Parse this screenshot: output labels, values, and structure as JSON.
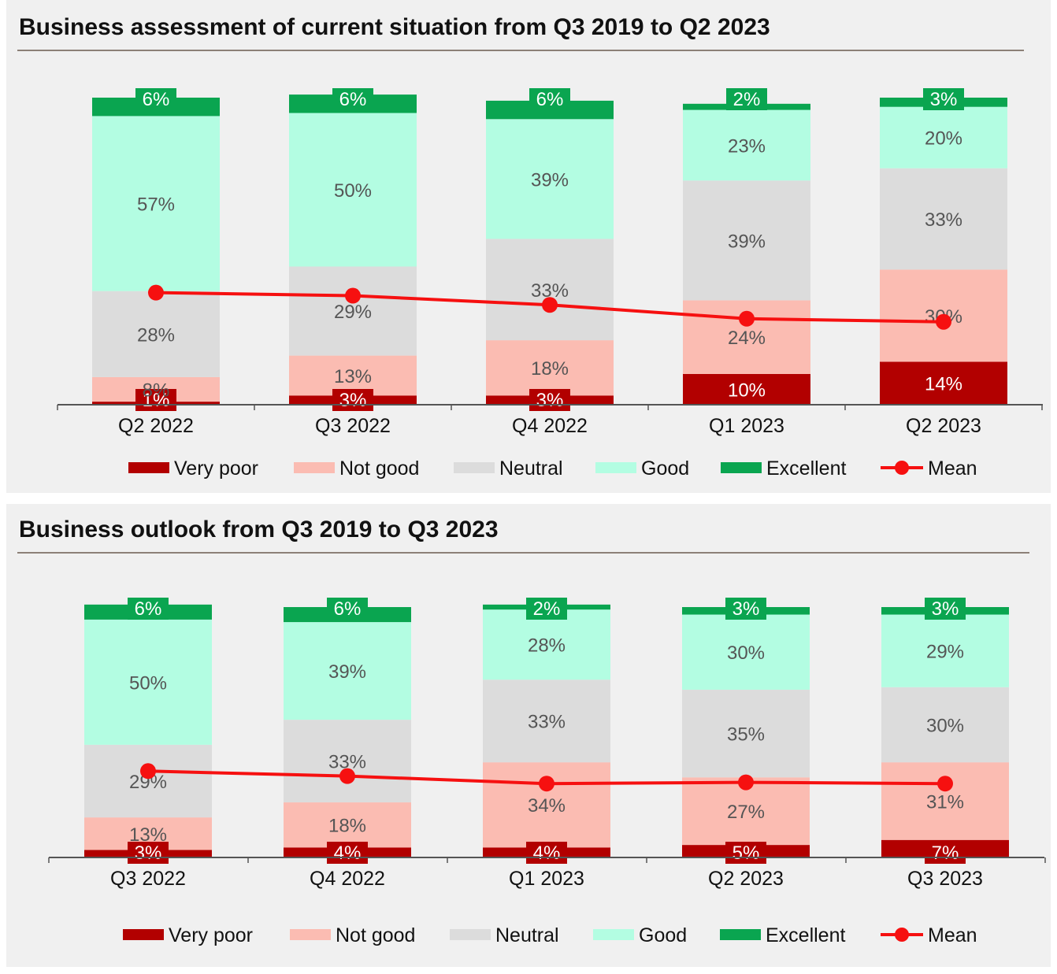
{
  "colors": {
    "very_poor": "#b20000",
    "not_good": "#fbbcb2",
    "neutral": "#dcdcdc",
    "good": "#b3fde2",
    "excellent": "#0aa550",
    "mean": "#f61010"
  },
  "chart_data": [
    {
      "type": "bar",
      "stacked": true,
      "title": "Business assessment of current situation from Q3 2019 to Q2 2023",
      "categories": [
        "Q2 2022",
        "Q3 2022",
        "Q4 2022",
        "Q1 2023",
        "Q2 2023"
      ],
      "series": [
        {
          "name": "Very poor",
          "values": [
            1,
            3,
            3,
            10,
            14
          ],
          "labels": [
            "1%",
            "3%",
            "3%",
            "10%",
            "14%"
          ]
        },
        {
          "name": "Not good",
          "values": [
            8,
            13,
            18,
            24,
            30
          ],
          "labels": [
            "8%",
            "13%",
            "18%",
            "24%",
            "30%"
          ]
        },
        {
          "name": "Neutral",
          "values": [
            28,
            29,
            33,
            39,
            33
          ],
          "labels": [
            "28%",
            "29%",
            "33%",
            "39%",
            "33%"
          ]
        },
        {
          "name": "Good",
          "values": [
            57,
            50,
            39,
            23,
            20
          ],
          "labels": [
            "57%",
            "50%",
            "39%",
            "23%",
            "20%"
          ]
        },
        {
          "name": "Excellent",
          "values": [
            6,
            6,
            6,
            2,
            3
          ],
          "labels": [
            "6%",
            "6%",
            "6%",
            "2%",
            "3%"
          ]
        }
      ],
      "mean": {
        "name": "Mean",
        "values": [
          36.5,
          35.5,
          32.5,
          28.0,
          27.0
        ]
      },
      "ylim": [
        0,
        100
      ],
      "legend": "bottom",
      "legend_labels": [
        "Very poor",
        "Not good",
        "Neutral",
        "Good",
        "Excellent",
        "Mean"
      ]
    },
    {
      "type": "bar",
      "stacked": true,
      "title": "Business outlook from Q3 2019 to Q3 2023",
      "categories": [
        "Q3 2022",
        "Q4 2022",
        "Q1 2023",
        "Q2 2023",
        "Q3 2023"
      ],
      "series": [
        {
          "name": "Very poor",
          "values": [
            3,
            4,
            4,
            5,
            7
          ],
          "labels": [
            "3%",
            "4%",
            "4%",
            "5%",
            "7%"
          ]
        },
        {
          "name": "Not good",
          "values": [
            13,
            18,
            34,
            27,
            31
          ],
          "labels": [
            "13%",
            "18%",
            "34%",
            "27%",
            "31%"
          ]
        },
        {
          "name": "Neutral",
          "values": [
            29,
            33,
            33,
            35,
            30
          ],
          "labels": [
            "29%",
            "33%",
            "33%",
            "35%",
            "30%"
          ]
        },
        {
          "name": "Good",
          "values": [
            50,
            39,
            28,
            30,
            29
          ],
          "labels": [
            "50%",
            "39%",
            "28%",
            "30%",
            "29%"
          ]
        },
        {
          "name": "Excellent",
          "values": [
            6,
            6,
            2,
            3,
            3
          ],
          "labels": [
            "6%",
            "6%",
            "2%",
            "3%",
            "3%"
          ]
        }
      ],
      "mean": {
        "name": "Mean",
        "values": [
          34.5,
          32.5,
          29.5,
          30.0,
          29.5
        ]
      },
      "ylim": [
        0,
        100
      ],
      "legend": "bottom",
      "legend_labels": [
        "Very poor",
        "Not good",
        "Neutral",
        "Good",
        "Excellent",
        "Mean"
      ]
    }
  ]
}
